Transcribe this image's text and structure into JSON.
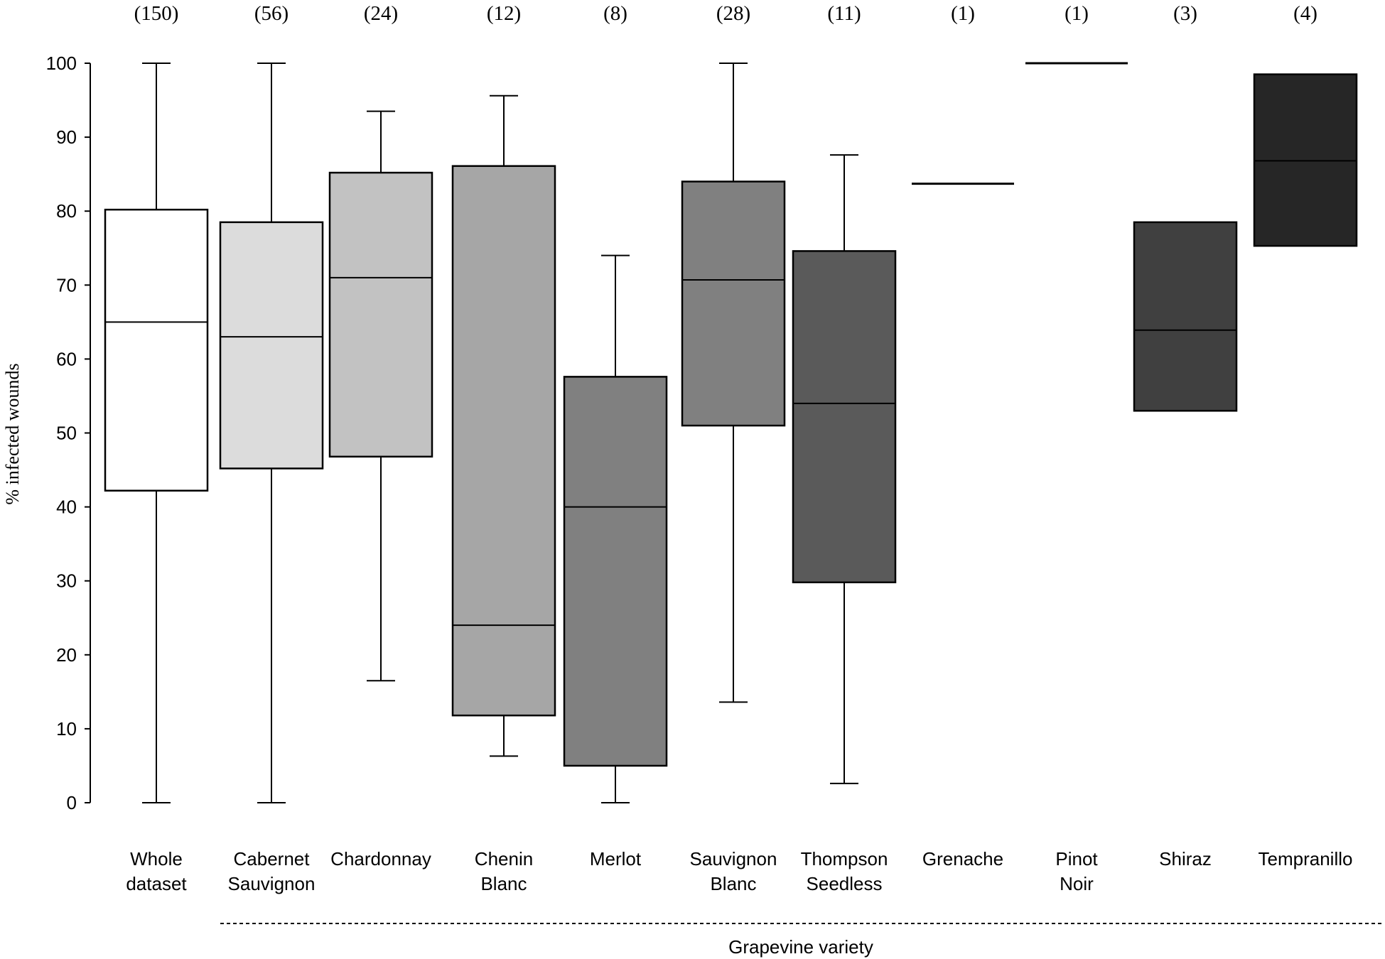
{
  "chart_data": {
    "type": "boxplot",
    "title": "",
    "ylabel": "% infected wounds",
    "xlabel": "Grapevine variety",
    "ylim": [
      0,
      100
    ],
    "yticks": [
      0,
      10,
      20,
      30,
      40,
      50,
      60,
      70,
      80,
      90,
      100
    ],
    "grid": false,
    "series": [
      {
        "label": [
          "Whole",
          "dataset"
        ],
        "n": "(150)",
        "min": 0,
        "q1": 42.2,
        "median": 65,
        "q3": 80.2,
        "max": 100,
        "fill": "#ffffff"
      },
      {
        "label": [
          "Cabernet",
          "Sauvignon"
        ],
        "n": "(56)",
        "min": 0,
        "q1": 45.2,
        "median": 63,
        "q3": 78.5,
        "max": 100,
        "fill": "#dcdcdc"
      },
      {
        "label": [
          "Chardonnay"
        ],
        "n": "(24)",
        "min": 16.5,
        "q1": 46.8,
        "median": 71,
        "q3": 85.2,
        "max": 93.5,
        "fill": "#c2c2c2"
      },
      {
        "label": [
          "Chenin",
          "Blanc"
        ],
        "n": "(12)",
        "min": 6.3,
        "q1": 11.8,
        "median": 24,
        "q3": 86.1,
        "max": 95.6,
        "fill": "#a6a6a6"
      },
      {
        "label": [
          "Merlot"
        ],
        "n": "(8)",
        "min": 0,
        "q1": 5,
        "median": 40,
        "q3": 57.6,
        "max": 74,
        "fill": "#808080"
      },
      {
        "label": [
          "Sauvignon",
          "Blanc"
        ],
        "n": "(28)",
        "min": 13.6,
        "q1": 51,
        "median": 70.7,
        "q3": 84,
        "max": 100,
        "fill": "#808080"
      },
      {
        "label": [
          "Thompson",
          "Seedless"
        ],
        "n": "(11)",
        "min": 2.6,
        "q1": 29.8,
        "median": 54,
        "q3": 74.6,
        "max": 87.6,
        "fill": "#5a5a5a"
      },
      {
        "label": [
          "Grenache"
        ],
        "n": "(1)",
        "min": 83.7,
        "q1": 83.7,
        "median": 83.7,
        "q3": 83.7,
        "max": 83.7,
        "fill": "#000000"
      },
      {
        "label": [
          "Pinot",
          "Noir"
        ],
        "n": "(1)",
        "min": 100,
        "q1": 100,
        "median": 100,
        "q3": 100,
        "max": 100,
        "fill": "#000000"
      },
      {
        "label": [
          "Shiraz"
        ],
        "n": "(3)",
        "min": 53,
        "q1": 53,
        "median": 63.9,
        "q3": 78.5,
        "max": 78.5,
        "fill": "#404040"
      },
      {
        "label": [
          "Tempranillo"
        ],
        "n": "(4)",
        "min": 75.3,
        "q1": 75.3,
        "median": 86.8,
        "q3": 98.5,
        "max": 98.5,
        "fill": "#262626"
      }
    ]
  }
}
